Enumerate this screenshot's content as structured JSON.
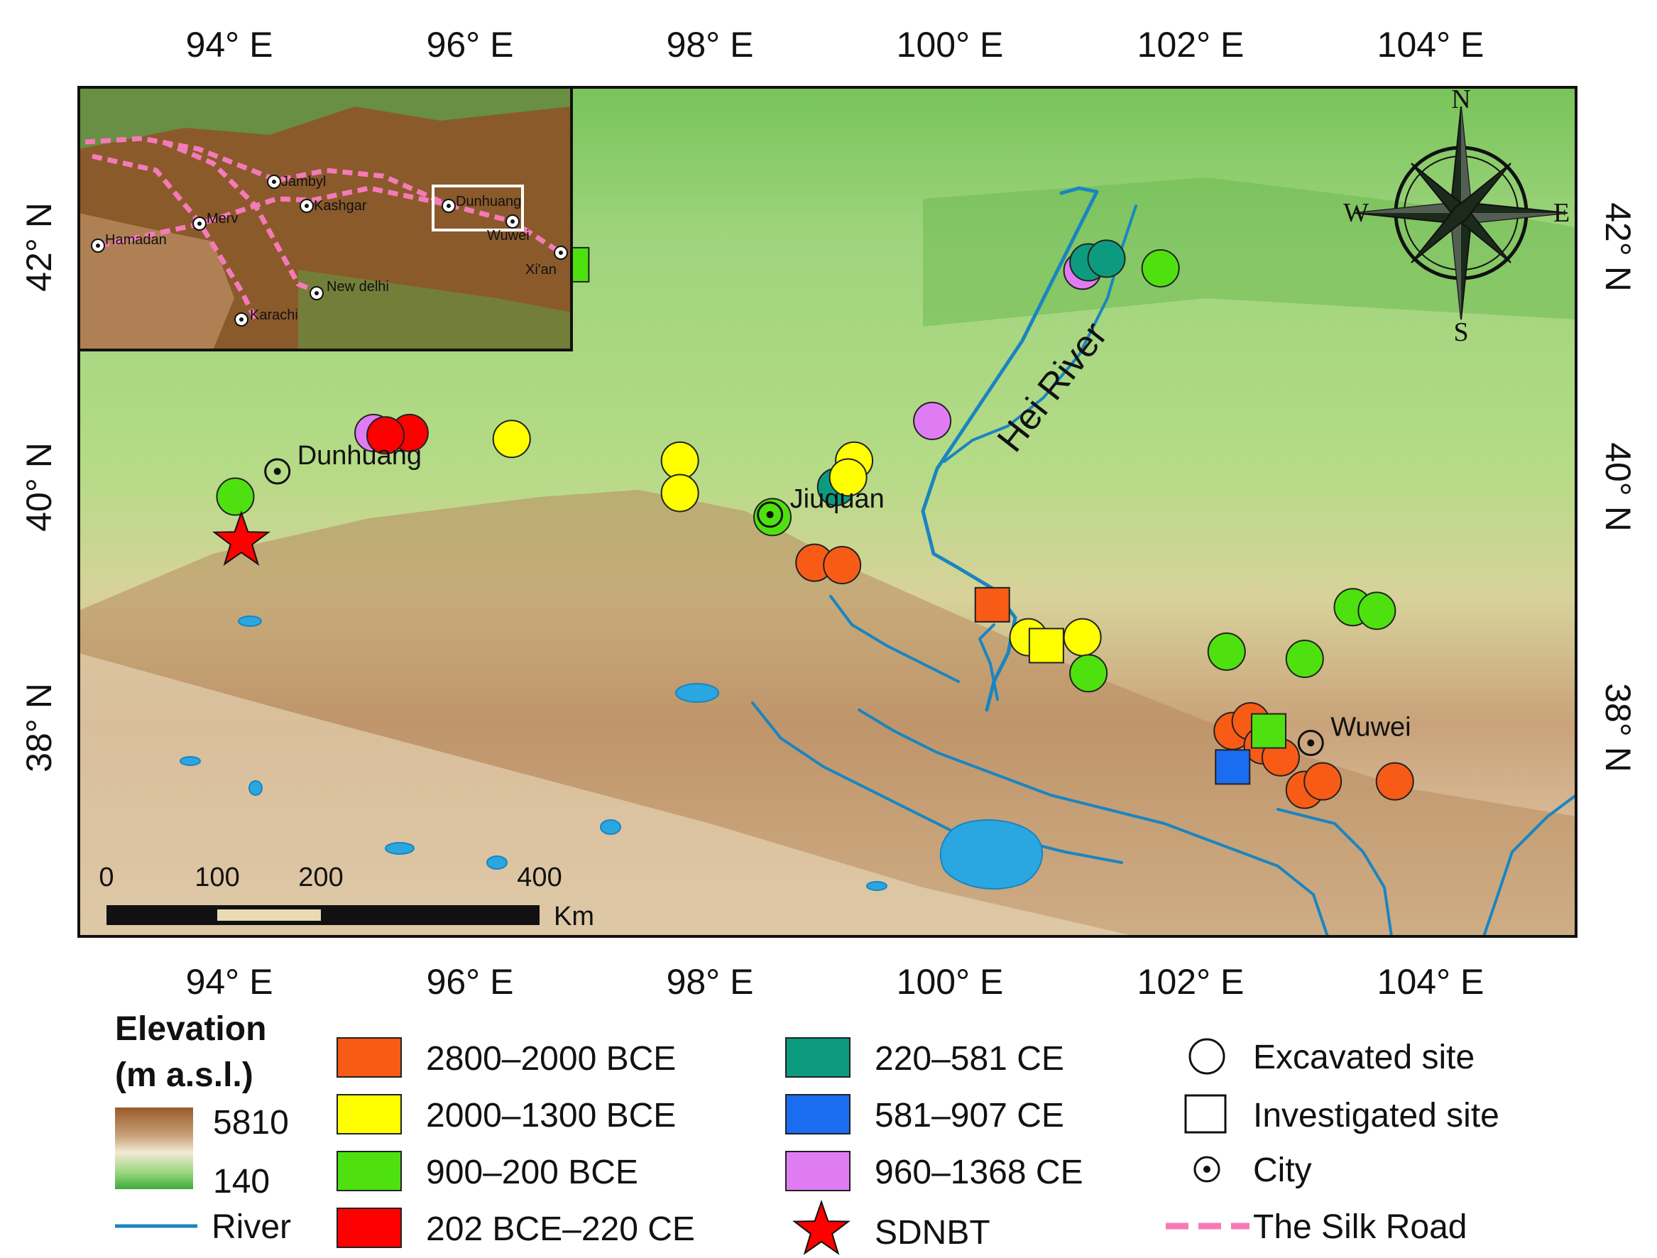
{
  "axes": {
    "top_ticks": [
      "94° E",
      "96° E",
      "98° E",
      "100° E",
      "102° E",
      "104° E"
    ],
    "bottom_ticks": [
      "94° E",
      "96° E",
      "98° E",
      "100° E",
      "102° E",
      "104° E"
    ],
    "left_ticks": [
      "42° N",
      "40° N",
      "38° N"
    ],
    "right_ticks": [
      "42° N",
      "40° N",
      "38° N"
    ]
  },
  "cities": [
    {
      "name": "Dunhuang",
      "lon": 94.4,
      "lat": 40.13
    },
    {
      "name": "Jiuquan",
      "lon": 98.5,
      "lat": 39.77
    },
    {
      "name": "Wuwei",
      "lon": 103.0,
      "lat": 37.87
    }
  ],
  "river_name": "Hei River",
  "sdnbt": {
    "lon": 94.1,
    "lat": 39.55
  },
  "sites": [
    {
      "shape": "square",
      "period": "900–200 BCE",
      "lon": 96.85,
      "lat": 41.85
    },
    {
      "shape": "circle",
      "period": "900–200 BCE",
      "lon": 94.05,
      "lat": 39.92
    },
    {
      "shape": "circle",
      "period": "960–1368 CE",
      "lon": 95.2,
      "lat": 40.45
    },
    {
      "shape": "circle",
      "period": "202 BCE–220 CE",
      "lon": 95.5,
      "lat": 40.45
    },
    {
      "shape": "circle",
      "period": "202 BCE–220 CE",
      "lon": 95.3,
      "lat": 40.43
    },
    {
      "shape": "circle",
      "period": "2000–1300 BCE",
      "lon": 96.35,
      "lat": 40.4
    },
    {
      "shape": "circle",
      "period": "2000–1300 BCE",
      "lon": 97.75,
      "lat": 40.22
    },
    {
      "shape": "circle",
      "period": "2000–1300 BCE",
      "lon": 97.75,
      "lat": 39.95
    },
    {
      "shape": "circle",
      "period": "900–200 BCE",
      "lon": 98.52,
      "lat": 39.75
    },
    {
      "shape": "circle",
      "period": "2800–2000 BCE",
      "lon": 98.87,
      "lat": 39.37
    },
    {
      "shape": "circle",
      "period": "2800–2000 BCE",
      "lon": 99.1,
      "lat": 39.35
    },
    {
      "shape": "circle",
      "period": "220–581 CE",
      "lon": 99.05,
      "lat": 40.0
    },
    {
      "shape": "circle",
      "period": "2000–1300 BCE",
      "lon": 99.2,
      "lat": 40.22
    },
    {
      "shape": "circle",
      "period": "2000–1300 BCE",
      "lon": 99.15,
      "lat": 40.08
    },
    {
      "shape": "circle",
      "period": "960–1368 CE",
      "lon": 99.85,
      "lat": 40.55
    },
    {
      "shape": "circle",
      "period": "960–1368 CE",
      "lon": 101.1,
      "lat": 41.8
    },
    {
      "shape": "circle",
      "period": "220–581 CE",
      "lon": 101.15,
      "lat": 41.87
    },
    {
      "shape": "circle",
      "period": "220–581 CE",
      "lon": 101.3,
      "lat": 41.9
    },
    {
      "shape": "circle",
      "period": "900–200 BCE",
      "lon": 101.75,
      "lat": 41.82
    },
    {
      "shape": "square",
      "period": "2800–2000 BCE",
      "lon": 100.35,
      "lat": 39.02
    },
    {
      "shape": "circle",
      "period": "2000–1300 BCE",
      "lon": 100.65,
      "lat": 38.75
    },
    {
      "shape": "square",
      "period": "2000–1300 BCE",
      "lon": 100.8,
      "lat": 38.68
    },
    {
      "shape": "circle",
      "period": "2000–1300 BCE",
      "lon": 101.1,
      "lat": 38.75
    },
    {
      "shape": "circle",
      "period": "900–200 BCE",
      "lon": 101.15,
      "lat": 38.45
    },
    {
      "shape": "circle",
      "period": "900–200 BCE",
      "lon": 102.3,
      "lat": 38.63
    },
    {
      "shape": "circle",
      "period": "900–200 BCE",
      "lon": 102.95,
      "lat": 38.57
    },
    {
      "shape": "circle",
      "period": "900–200 BCE",
      "lon": 103.35,
      "lat": 39.0
    },
    {
      "shape": "circle",
      "period": "900–200 BCE",
      "lon": 103.55,
      "lat": 38.97
    },
    {
      "shape": "circle",
      "period": "2800–2000 BCE",
      "lon": 102.35,
      "lat": 37.97
    },
    {
      "shape": "circle",
      "period": "2800–2000 BCE",
      "lon": 102.5,
      "lat": 38.05
    },
    {
      "shape": "circle",
      "period": "2800–2000 BCE",
      "lon": 102.6,
      "lat": 37.85
    },
    {
      "shape": "circle",
      "period": "2800–2000 BCE",
      "lon": 102.75,
      "lat": 37.75
    },
    {
      "shape": "circle",
      "period": "2800–2000 BCE",
      "lon": 102.95,
      "lat": 37.48
    },
    {
      "shape": "circle",
      "period": "2800–2000 BCE",
      "lon": 103.1,
      "lat": 37.55
    },
    {
      "shape": "circle",
      "period": "2800–2000 BCE",
      "lon": 103.7,
      "lat": 37.55
    },
    {
      "shape": "square",
      "period": "900–200 BCE",
      "lon": 102.65,
      "lat": 37.97
    },
    {
      "shape": "square",
      "period": "581–907 CE",
      "lon": 102.35,
      "lat": 37.67
    }
  ],
  "period_colors": {
    "2800–2000 BCE": "#f75b16",
    "2000–1300 BCE": "#ffff00",
    "900–200 BCE": "#4fe10f",
    "202 BCE–220 CE": "#ff0000",
    "220–581 CE": "#0d9b7f",
    "581–907 CE": "#1a6cf0",
    "960–1368 CE": "#e07cf3"
  },
  "compass": {
    "n": "N",
    "s": "S",
    "e": "E",
    "w": "W"
  },
  "scale_bar": {
    "ticks": [
      "0",
      "100",
      "200",
      "400"
    ],
    "unit": "Km"
  },
  "inset": {
    "cities": [
      {
        "name": "Jambyl"
      },
      {
        "name": "Kashgar"
      },
      {
        "name": "Dunhuang"
      },
      {
        "name": "Merv"
      },
      {
        "name": "Hamadan"
      },
      {
        "name": "Wuwei"
      },
      {
        "name": "Xi'an"
      },
      {
        "name": "New delhi"
      },
      {
        "name": "Karachi"
      }
    ]
  },
  "legend": {
    "elevation_title_line1": "Elevation",
    "elevation_title_line2": "(m a.s.l.)",
    "elevation_max": "5810",
    "elevation_min": "140",
    "river_label": "River",
    "periods": [
      {
        "label": "2800–2000 BCE",
        "color": "#f75b16"
      },
      {
        "label": "2000–1300 BCE",
        "color": "#ffff00"
      },
      {
        "label": "900–200 BCE",
        "color": "#4fe10f"
      },
      {
        "label": "202 BCE–220 CE",
        "color": "#ff0000"
      },
      {
        "label": "220–581 CE",
        "color": "#0d9b7f"
      },
      {
        "label": "581–907 CE",
        "color": "#1a6cf0"
      },
      {
        "label": "960–1368 CE",
        "color": "#e07cf3"
      }
    ],
    "sdnbt_label": "SDNBT",
    "excavated_label": "Excavated site",
    "investigated_label": "Investigated site",
    "city_label": "City",
    "silk_road_label": "The Silk Road",
    "silk_road_color": "#f57ab8",
    "river_color": "#1a85c0"
  }
}
